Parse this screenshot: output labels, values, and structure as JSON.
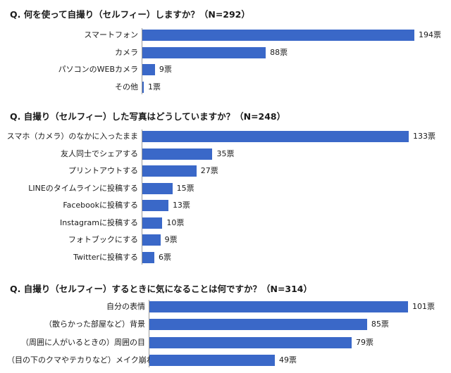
{
  "chart_data": [
    {
      "type": "bar",
      "orientation": "horizontal",
      "title": "Q. 何を使って自撮り（セルフィー）しますか？（N=292）",
      "categories": [
        "スマートフォン",
        "カメラ",
        "パソコンのWEBカメラ",
        "その他"
      ],
      "values": [
        194,
        88,
        9,
        1
      ],
      "value_labels": [
        "194票",
        "88票",
        "9票",
        "1票"
      ],
      "color": "#3a68c8"
    },
    {
      "type": "bar",
      "orientation": "horizontal",
      "title": "Q. 自撮り（セルフィー）した写真はどうしていますか？（N=248）",
      "categories": [
        "スマホ（カメラ）のなかに入ったまま",
        "友人同士でシェアする",
        "プリントアウトする",
        "LINEのタイムラインに投稿する",
        "Facebookに投稿する",
        "Instagramに投稿する",
        "フォトブックにする",
        "Twitterに投稿する"
      ],
      "values": [
        133,
        35,
        27,
        15,
        13,
        10,
        9,
        6
      ],
      "value_labels": [
        "133票",
        "35票",
        "27票",
        "15票",
        "13票",
        "10票",
        "9票",
        "6票"
      ],
      "color": "#3a68c8"
    },
    {
      "type": "bar",
      "orientation": "horizontal",
      "title": "Q. 自撮り（セルフィー）するときに気になることは何ですか？（N=314）",
      "categories": [
        "自分の表情",
        "（散らかった部屋など）背景",
        "（周囲に人がいるときの）周囲の目",
        "（目の下のクマやテカりなど）メイク崩れ"
      ],
      "values": [
        101,
        85,
        79,
        49
      ],
      "value_labels": [
        "101票",
        "85票",
        "79票",
        "49票"
      ],
      "color": "#3a68c8"
    }
  ]
}
